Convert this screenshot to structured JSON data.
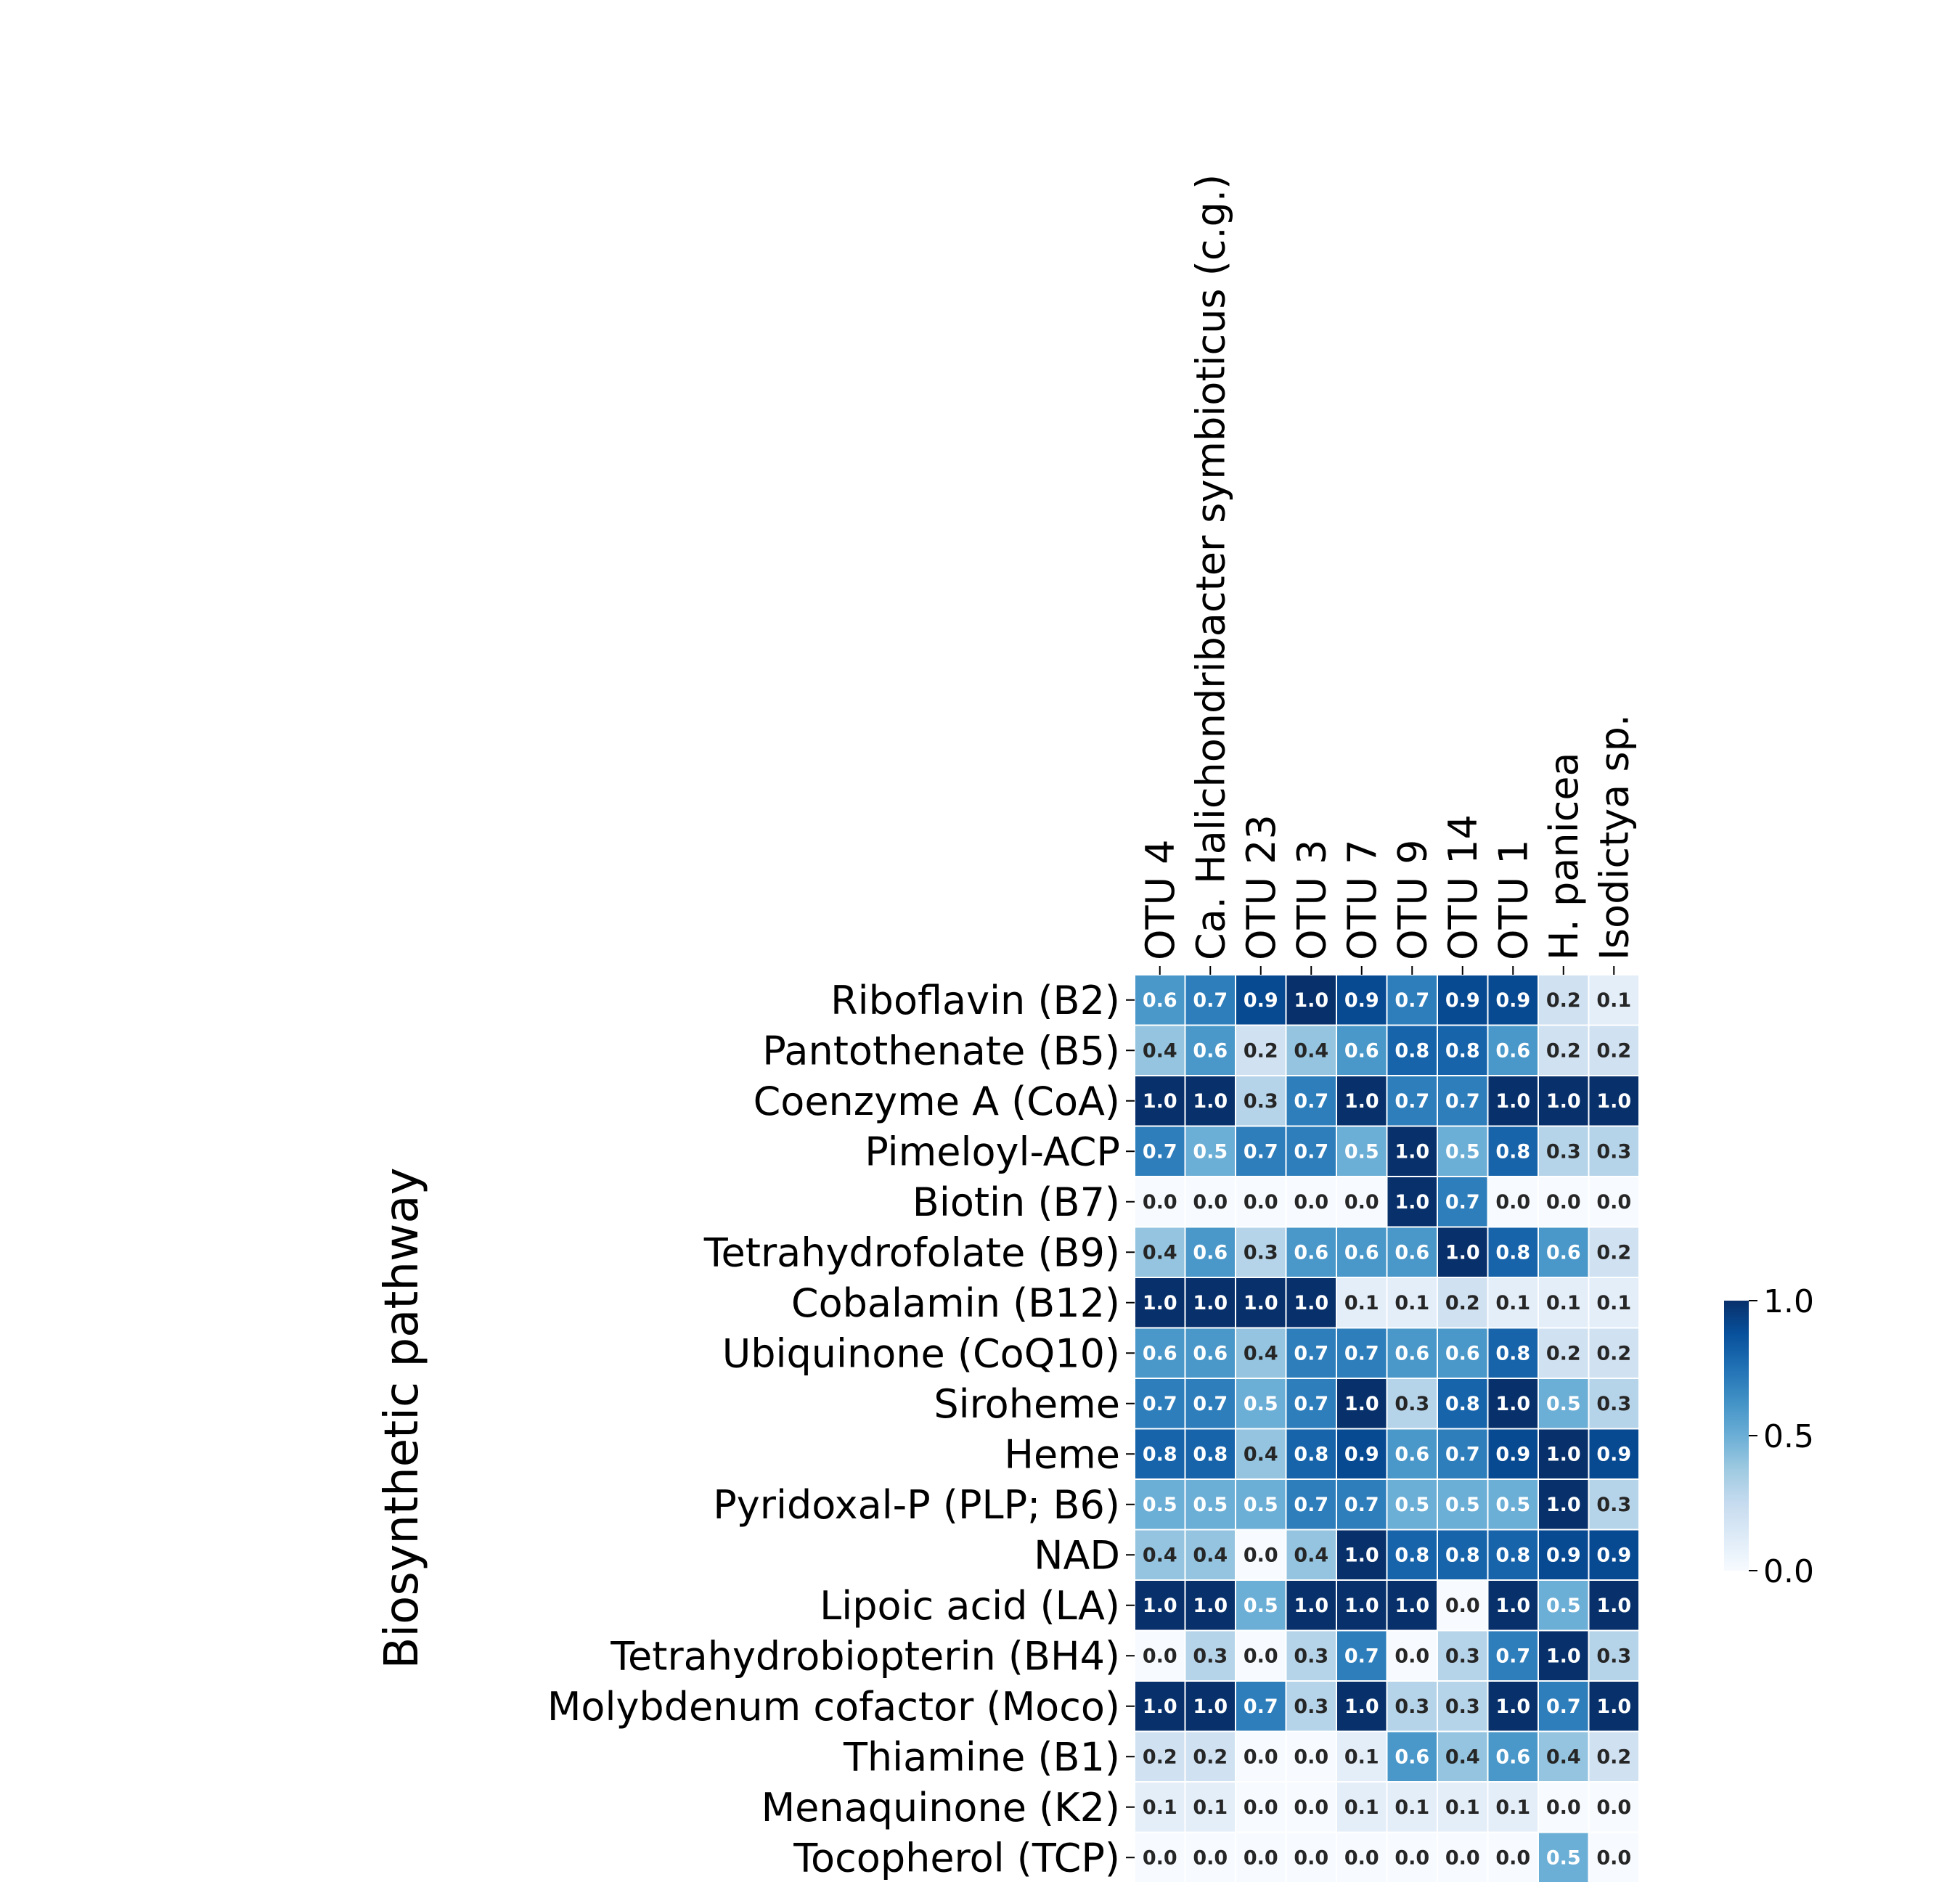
{
  "chart_data": {
    "type": "heatmap",
    "ylabel": "Biosynthetic pathway",
    "columns": [
      "OTU 4",
      "Ca. Halichondribacter symbioticus (c.g.)",
      "OTU 23",
      "OTU 3",
      "OTU 7",
      "OTU 9",
      "OTU 14",
      "OTU 1",
      "H. panicea",
      "Isodictya sp."
    ],
    "rows": [
      "Riboflavin (B2)",
      "Pantothenate (B5)",
      "Coenzyme A (CoA)",
      "Pimeloyl-ACP",
      "Biotin (B7)",
      "Tetrahydrofolate (B9)",
      "Cobalamin (B12)",
      "Ubiquinone (CoQ10)",
      "Siroheme",
      "Heme",
      "Pyridoxal-P (PLP; B6)",
      "NAD",
      "Lipoic acid (LA)",
      "Tetrahydrobiopterin (BH4)",
      "Molybdenum cofactor (Moco)",
      "Thiamine (B1)",
      "Menaquinone (K2)",
      "Tocopherol (TCP)"
    ],
    "values": [
      [
        0.6,
        0.7,
        0.9,
        1.0,
        0.9,
        0.7,
        0.9,
        0.9,
        0.2,
        0.1
      ],
      [
        0.4,
        0.6,
        0.2,
        0.4,
        0.6,
        0.8,
        0.8,
        0.6,
        0.2,
        0.2
      ],
      [
        1.0,
        1.0,
        0.3,
        0.7,
        1.0,
        0.7,
        0.7,
        1.0,
        1.0,
        1.0
      ],
      [
        0.7,
        0.5,
        0.7,
        0.7,
        0.5,
        1.0,
        0.5,
        0.8,
        0.3,
        0.3
      ],
      [
        0.0,
        0.0,
        0.0,
        0.0,
        0.0,
        1.0,
        0.7,
        0.0,
        0.0,
        0.0
      ],
      [
        0.4,
        0.6,
        0.3,
        0.6,
        0.6,
        0.6,
        1.0,
        0.8,
        0.6,
        0.2
      ],
      [
        1.0,
        1.0,
        1.0,
        1.0,
        0.1,
        0.1,
        0.2,
        0.1,
        0.1,
        0.1
      ],
      [
        0.6,
        0.6,
        0.4,
        0.7,
        0.7,
        0.6,
        0.6,
        0.8,
        0.2,
        0.2
      ],
      [
        0.7,
        0.7,
        0.5,
        0.7,
        1.0,
        0.3,
        0.8,
        1.0,
        0.5,
        0.3
      ],
      [
        0.8,
        0.8,
        0.4,
        0.8,
        0.9,
        0.6,
        0.7,
        0.9,
        1.0,
        0.9
      ],
      [
        0.5,
        0.5,
        0.5,
        0.7,
        0.7,
        0.5,
        0.5,
        0.5,
        1.0,
        0.3
      ],
      [
        0.4,
        0.4,
        0.0,
        0.4,
        1.0,
        0.8,
        0.8,
        0.8,
        0.9,
        0.9
      ],
      [
        1.0,
        1.0,
        0.5,
        1.0,
        1.0,
        1.0,
        0.0,
        1.0,
        0.5,
        1.0
      ],
      [
        0.0,
        0.3,
        0.0,
        0.3,
        0.7,
        0.0,
        0.3,
        0.7,
        1.0,
        0.3
      ],
      [
        1.0,
        1.0,
        0.7,
        0.3,
        1.0,
        0.3,
        0.3,
        1.0,
        0.7,
        1.0
      ],
      [
        0.2,
        0.2,
        0.0,
        0.0,
        0.1,
        0.6,
        0.4,
        0.6,
        0.4,
        0.2
      ],
      [
        0.1,
        0.1,
        0.0,
        0.0,
        0.1,
        0.1,
        0.1,
        0.1,
        0.0,
        0.0
      ],
      [
        0.0,
        0.0,
        0.0,
        0.0,
        0.0,
        0.0,
        0.0,
        0.0,
        0.5,
        0.0
      ]
    ],
    "colorbar": {
      "min": 0.0,
      "max": 1.0,
      "ticks": [
        "0.0",
        "0.5",
        "1.0"
      ]
    },
    "colormap": "Blues",
    "colors": [
      "#f7fbff",
      "#deebf7",
      "#c6dbef",
      "#9ecae1",
      "#6baed6",
      "#4292c6",
      "#2171b5",
      "#08519c",
      "#08306b"
    ]
  }
}
